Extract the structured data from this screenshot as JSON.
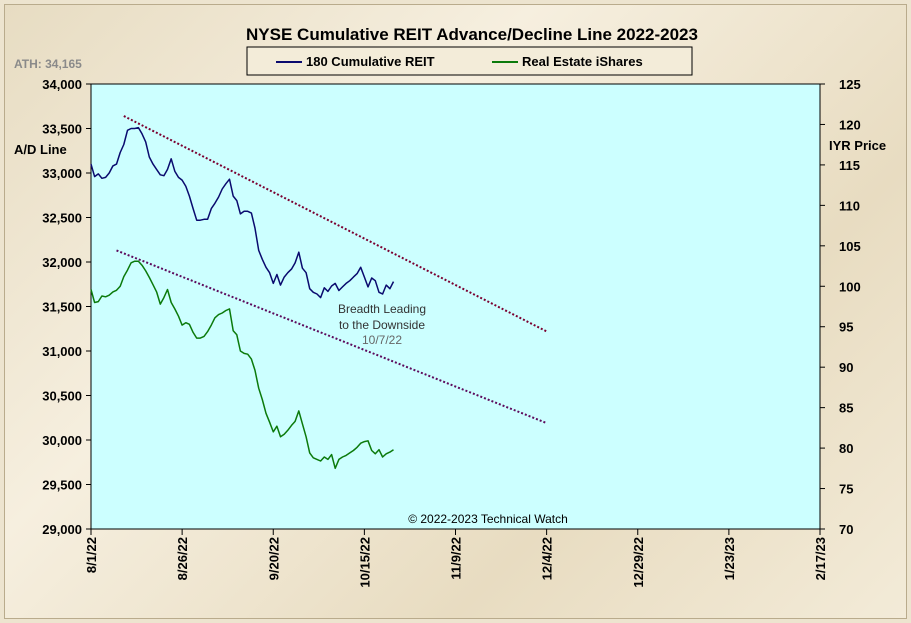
{
  "chart_data": {
    "type": "line",
    "title": "NYSE Cumulative  REIT Advance/Decline  Line 2022-2023",
    "ath_label": "ATH: 34,165",
    "y_left_label": "A/D Line",
    "y_right_label": "IYR Price",
    "y_left_lim": [
      29000,
      34000
    ],
    "y_left_ticks": [
      "29,000",
      "29,500",
      "30,000",
      "30,500",
      "31,000",
      "31,500",
      "32,000",
      "32,500",
      "33,000",
      "33,500",
      "34,000"
    ],
    "y_right_lim": [
      70,
      125
    ],
    "y_right_ticks": [
      "70",
      "75",
      "80",
      "85",
      "90",
      "95",
      "100",
      "105",
      "110",
      "115",
      "120",
      "125"
    ],
    "x_domain_days": [
      0,
      200
    ],
    "x_ticks": [
      {
        "day": 0,
        "label": "8/1/22"
      },
      {
        "day": 25,
        "label": "8/26/22"
      },
      {
        "day": 50,
        "label": "9/20/22"
      },
      {
        "day": 75,
        "label": "10/15/22"
      },
      {
        "day": 100,
        "label": "11/9/22"
      },
      {
        "day": 125,
        "label": "12/4/22"
      },
      {
        "day": 150,
        "label": "12/29/22"
      },
      {
        "day": 175,
        "label": "1/23/23"
      },
      {
        "day": 200,
        "label": "2/17/23"
      }
    ],
    "legend": "top-center",
    "grid": false,
    "series": [
      {
        "name": "180 Cumulative REIT",
        "axis": "left",
        "color": "#0a0a6e",
        "x": [
          0,
          1,
          2,
          3,
          4,
          5,
          6,
          7,
          8,
          9,
          10,
          11,
          12,
          13,
          14,
          15,
          16,
          17,
          18,
          19,
          20,
          21,
          22,
          23,
          24,
          25,
          26,
          27,
          28,
          29,
          30,
          31,
          32,
          33,
          34,
          35,
          36,
          37,
          38,
          39,
          40,
          41,
          42,
          43,
          44,
          45,
          46,
          47,
          48,
          49,
          50,
          51,
          52,
          53,
          54,
          55,
          56,
          57,
          58,
          59,
          60,
          61,
          62,
          63,
          64,
          65,
          66,
          67,
          68,
          69,
          70,
          71,
          72,
          73,
          74,
          75,
          76,
          77,
          78,
          79,
          80,
          81,
          82,
          83
        ],
        "y": [
          33100,
          32960,
          32990,
          32940,
          32950,
          33000,
          33080,
          33100,
          33230,
          33320,
          33480,
          33500,
          33500,
          33510,
          33440,
          33350,
          33180,
          33100,
          33040,
          32980,
          32970,
          33040,
          33160,
          33020,
          32950,
          32920,
          32850,
          32740,
          32600,
          32470,
          32470,
          32480,
          32480,
          32600,
          32660,
          32730,
          32820,
          32880,
          32930,
          32740,
          32690,
          32540,
          32570,
          32570,
          32550,
          32380,
          32130,
          32030,
          31940,
          31880,
          31760,
          31860,
          31740,
          31830,
          31880,
          31920,
          31990,
          32110,
          31930,
          31880,
          31700,
          31660,
          31640,
          31600,
          31710,
          31670,
          31730,
          31760,
          31680,
          31720,
          31760,
          31790,
          31830,
          31870,
          31940,
          31830,
          31720,
          31820,
          31790,
          31660,
          31640,
          31740,
          31700,
          31780
        ]
      },
      {
        "name": "Real Estate iShares",
        "axis": "right",
        "color": "#0b7a0b",
        "x": [
          0,
          1,
          2,
          3,
          4,
          5,
          6,
          7,
          8,
          9,
          10,
          11,
          12,
          13,
          14,
          15,
          16,
          17,
          18,
          19,
          20,
          21,
          22,
          23,
          24,
          25,
          26,
          27,
          28,
          29,
          30,
          31,
          32,
          33,
          34,
          35,
          36,
          37,
          38,
          39,
          40,
          41,
          42,
          43,
          44,
          45,
          46,
          47,
          48,
          49,
          50,
          51,
          52,
          53,
          54,
          55,
          56,
          57,
          58,
          59,
          60,
          61,
          62,
          63,
          64,
          65,
          66,
          67,
          68,
          69,
          70,
          71,
          72,
          73,
          74,
          75,
          76,
          77,
          78,
          79,
          80,
          81,
          82,
          83
        ],
        "y": [
          99.6,
          98.0,
          98.1,
          98.8,
          98.7,
          98.9,
          99.3,
          99.5,
          100.0,
          101.2,
          102.0,
          102.9,
          103.1,
          103.1,
          102.6,
          101.9,
          101.1,
          100.2,
          99.3,
          97.8,
          98.6,
          99.6,
          98.0,
          97.2,
          96.3,
          95.2,
          95.5,
          95.3,
          94.3,
          93.6,
          93.6,
          93.8,
          94.4,
          95.2,
          96.1,
          96.5,
          96.7,
          97.0,
          97.2,
          94.5,
          94.0,
          92.0,
          91.7,
          91.6,
          91.0,
          89.6,
          87.4,
          86.0,
          84.3,
          83.2,
          82.0,
          82.7,
          81.4,
          81.7,
          82.2,
          82.8,
          83.3,
          84.6,
          83.0,
          81.4,
          79.4,
          78.8,
          78.6,
          78.4,
          78.9,
          78.6,
          79.2,
          77.5,
          78.6,
          78.9,
          79.1,
          79.4,
          79.7,
          80.1,
          80.6,
          80.8,
          80.9,
          79.7,
          79.3,
          79.8,
          78.9,
          79.3,
          79.5,
          79.8
        ]
      }
    ],
    "trendlines": [
      {
        "color": "#7a0030",
        "x": [
          9,
          125
        ],
        "y": [
          33640,
          31220
        ],
        "axis": "left"
      },
      {
        "color": "#5c0a5c",
        "x": [
          7,
          125
        ],
        "y": [
          32130,
          30190
        ],
        "axis": "left"
      }
    ],
    "annotations": {
      "line1": "Breadth Leading",
      "line2": "to the Downside",
      "date": "10/7/22"
    },
    "copyright": "© 2022-2023  Technical  Watch"
  }
}
